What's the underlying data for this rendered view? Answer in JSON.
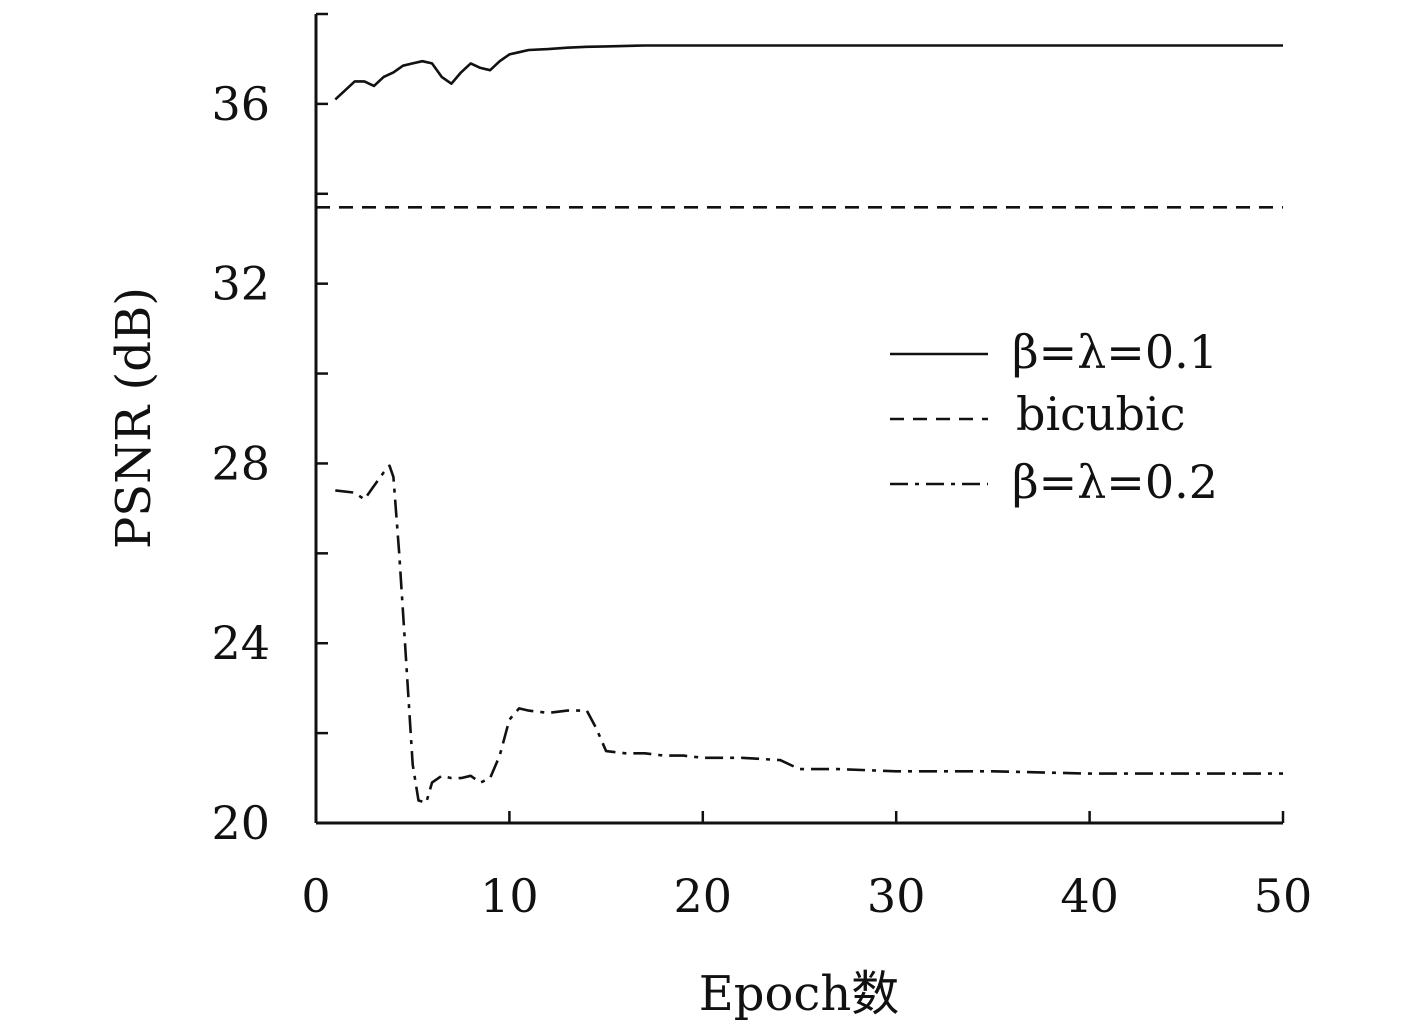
{
  "chart_data": {
    "type": "line",
    "xlabel": "Epoch数",
    "ylabel": "PSNR (dB)",
    "xlim": [
      0,
      50
    ],
    "ylim": [
      20,
      38
    ],
    "x_ticks": [
      0,
      10,
      20,
      30,
      40,
      50
    ],
    "y_ticks": [
      20,
      22,
      24,
      26,
      28,
      30,
      32,
      34,
      36,
      38
    ],
    "y_tick_labels": [
      "20",
      "",
      "24",
      "",
      "28",
      "",
      "32",
      "",
      "36",
      ""
    ],
    "x_tick_labels": [
      "0",
      "10",
      "20",
      "30",
      "40",
      "50"
    ],
    "grid": false,
    "legend_position": "right",
    "series": [
      {
        "name": "β=λ=0.1",
        "style": "solid",
        "x": [
          1,
          1.5,
          2,
          2.5,
          3,
          3.5,
          4,
          4.5,
          5,
          5.5,
          6,
          6.5,
          7,
          7.5,
          8,
          8.5,
          9,
          9.5,
          10,
          10.5,
          11,
          12,
          13,
          14,
          15,
          17,
          20,
          25,
          30,
          35,
          40,
          45,
          50
        ],
        "y": [
          36.1,
          36.3,
          36.5,
          36.5,
          36.4,
          36.6,
          36.7,
          36.85,
          36.9,
          36.95,
          36.9,
          36.6,
          36.45,
          36.7,
          36.9,
          36.8,
          36.75,
          36.95,
          37.1,
          37.15,
          37.2,
          37.22,
          37.25,
          37.27,
          37.28,
          37.3,
          37.3,
          37.3,
          37.3,
          37.3,
          37.3,
          37.3,
          37.3
        ]
      },
      {
        "name": "bicubic",
        "style": "dashed",
        "x": [
          0,
          50
        ],
        "y": [
          33.7,
          33.7
        ]
      },
      {
        "name": "β=λ=0.2",
        "style": "dashdot",
        "x": [
          1,
          2,
          2.5,
          3,
          3.5,
          3.8,
          4,
          4.3,
          4.6,
          5,
          5.3,
          5.7,
          6,
          6.5,
          7,
          7.5,
          8,
          8.5,
          9,
          9.5,
          10,
          10.5,
          11,
          12,
          13,
          14,
          14.5,
          15,
          16,
          17,
          18,
          19,
          20,
          22,
          24,
          25,
          27,
          30,
          35,
          40,
          45,
          50
        ],
        "y": [
          27.4,
          27.35,
          27.2,
          27.5,
          27.8,
          27.95,
          27.7,
          26.0,
          24.0,
          21.3,
          20.5,
          20.45,
          20.9,
          21.05,
          21.0,
          21.0,
          21.05,
          20.9,
          21.0,
          21.5,
          22.3,
          22.55,
          22.5,
          22.45,
          22.5,
          22.5,
          22.1,
          21.6,
          21.55,
          21.55,
          21.5,
          21.5,
          21.45,
          21.45,
          21.4,
          21.2,
          21.2,
          21.15,
          21.15,
          21.1,
          21.1,
          21.1
        ]
      }
    ]
  }
}
